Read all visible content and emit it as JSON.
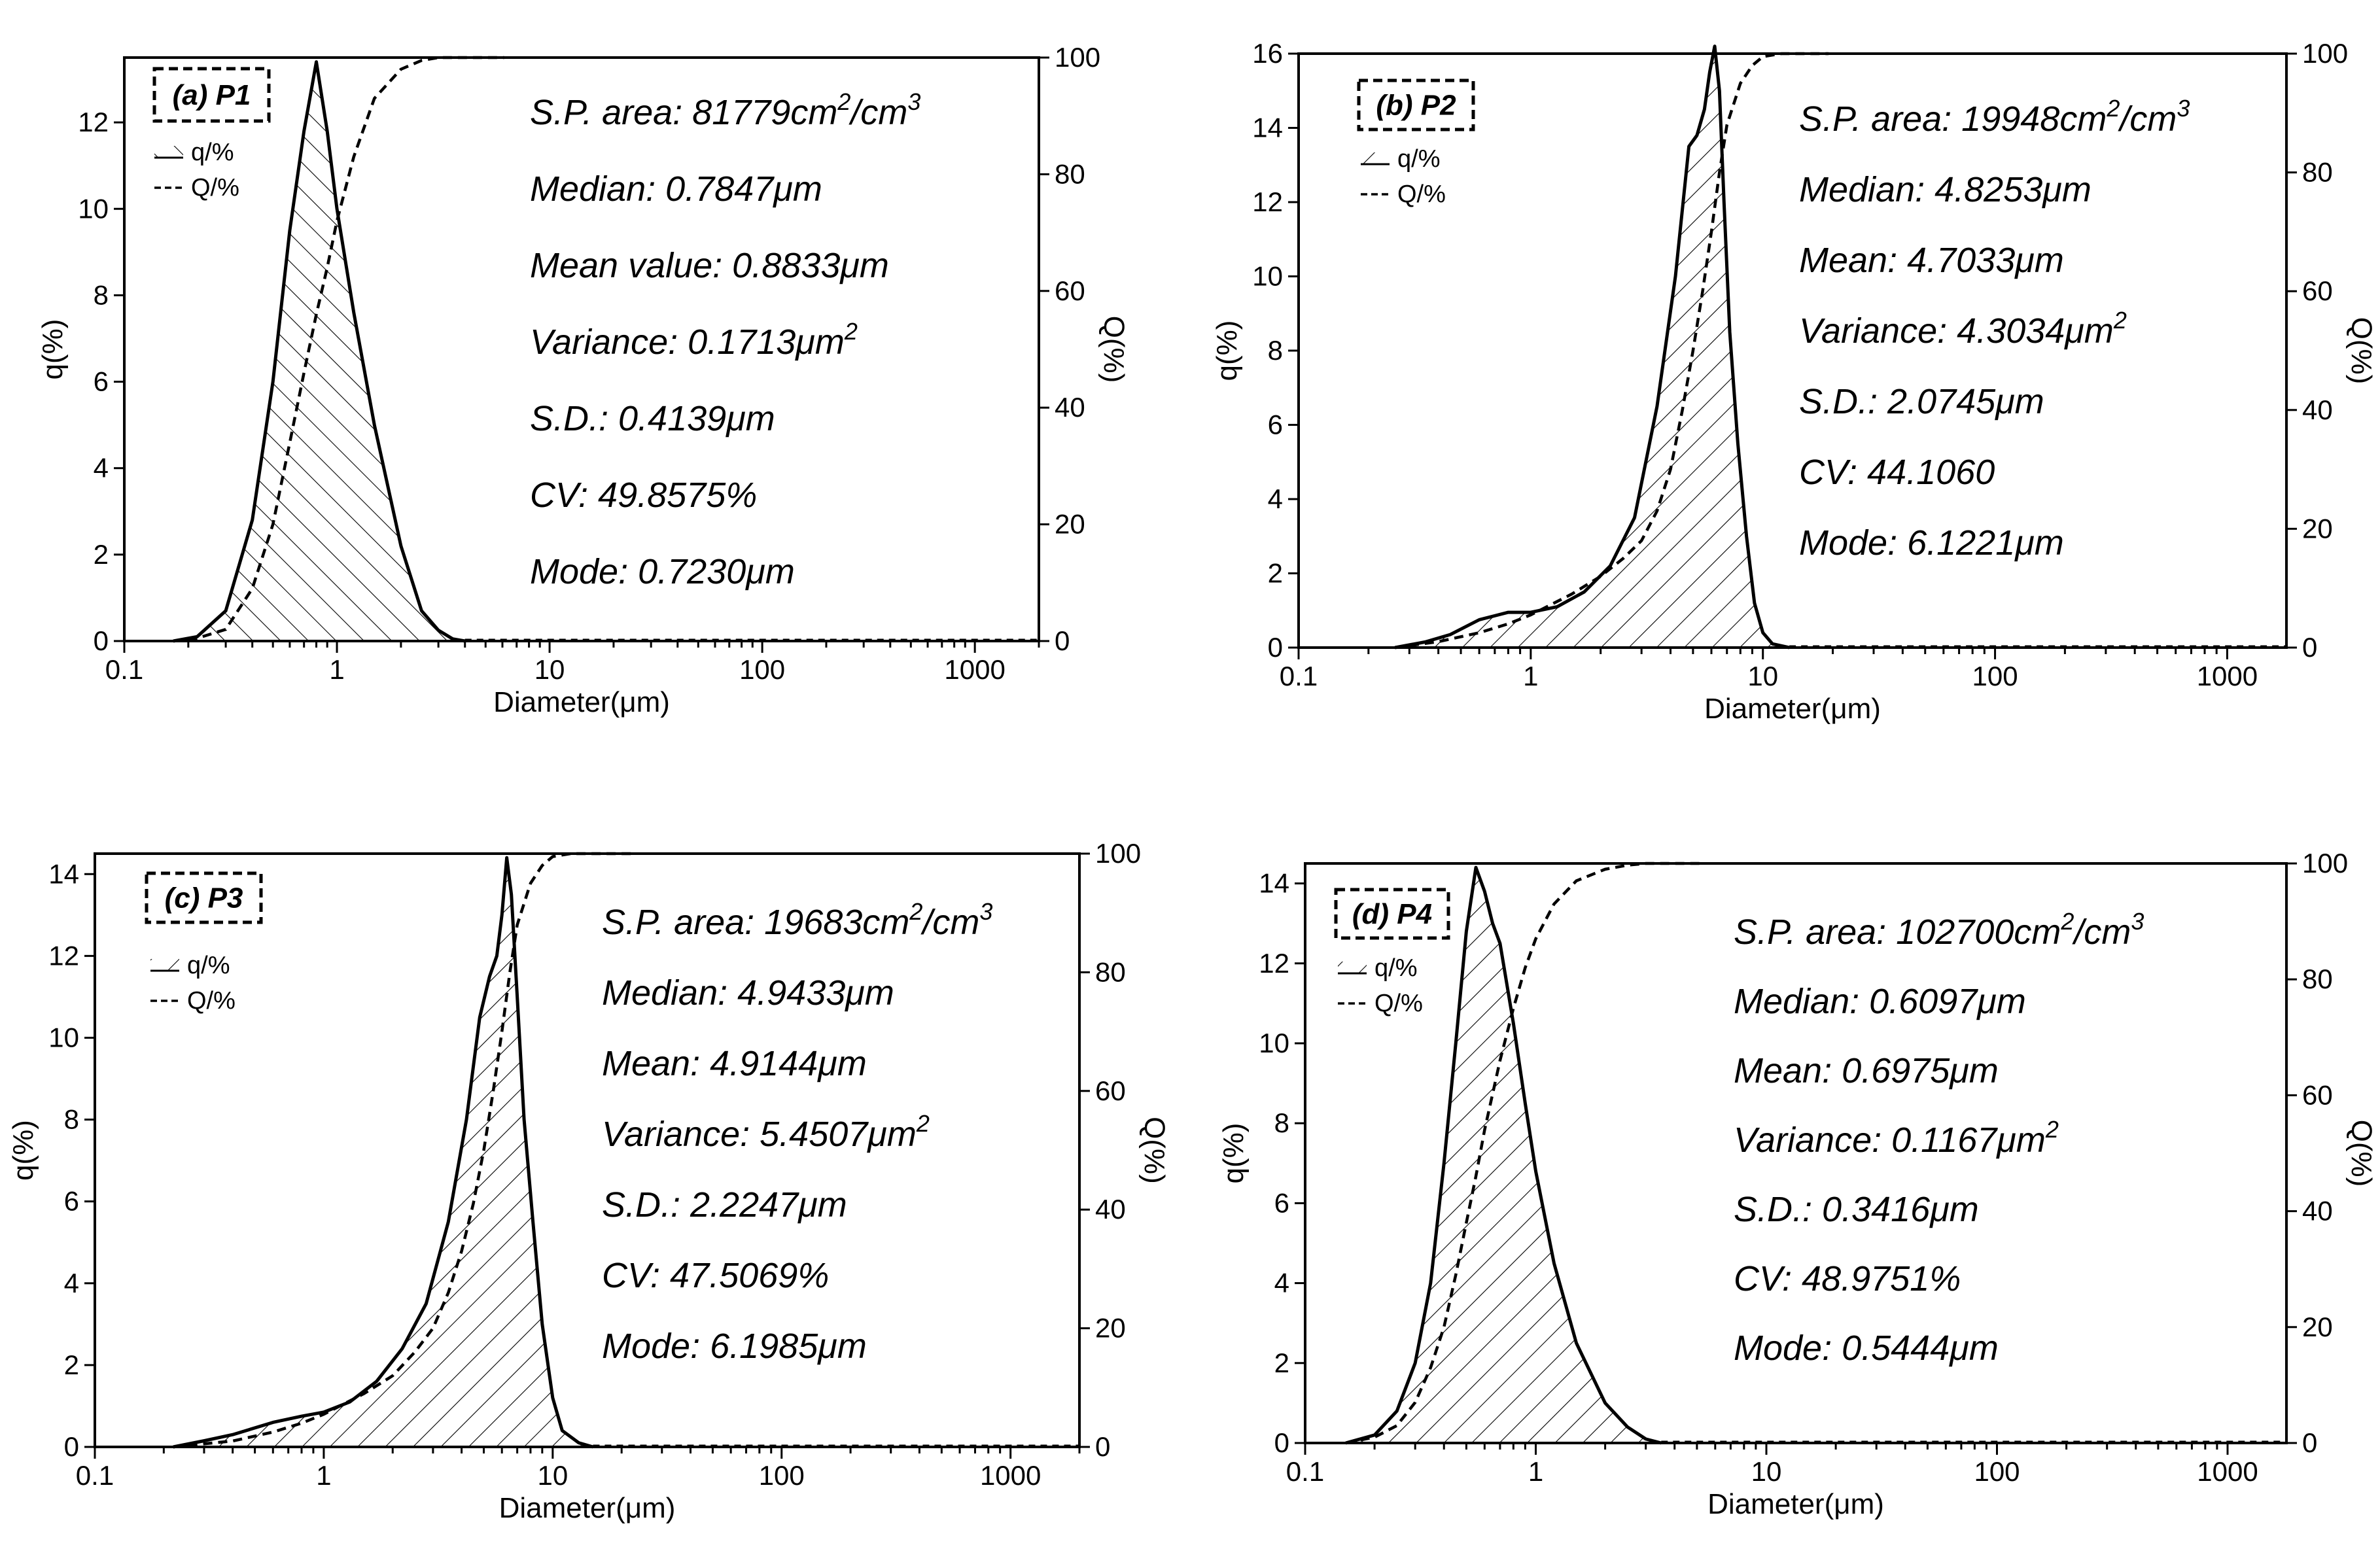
{
  "chart_data": [
    {
      "type": "area",
      "panel": "(a) P1",
      "xlabel": "Diameter(μm)",
      "ylabel": "q(%)",
      "y2label": "Q(%)",
      "xscale": "log",
      "xlim": [
        0.1,
        2000
      ],
      "ylim": [
        0,
        13.5
      ],
      "y2lim": [
        0,
        100
      ],
      "x_ticks": [
        "0.1",
        "1",
        "10",
        "100",
        "1000"
      ],
      "y_ticks": [
        "0",
        "2",
        "4",
        "6",
        "8",
        "10",
        "12"
      ],
      "y2_ticks": [
        "0",
        "20",
        "40",
        "60",
        "80",
        "100"
      ],
      "legend": [
        "q/%",
        "Q/%"
      ],
      "legend_position": "top-left",
      "series": [
        {
          "name": "q/%",
          "style": "solid-hatched",
          "x": [
            0.17,
            0.22,
            0.3,
            0.4,
            0.5,
            0.6,
            0.7,
            0.8,
            0.9,
            1.0,
            1.2,
            1.5,
            2.0,
            2.5,
            3.0,
            3.5,
            4.0
          ],
          "values": [
            0,
            0.1,
            0.7,
            2.8,
            6.0,
            9.5,
            11.8,
            13.4,
            11.8,
            10.0,
            7.6,
            5.0,
            2.2,
            0.7,
            0.25,
            0.05,
            0
          ]
        },
        {
          "name": "Q/%",
          "style": "dashed",
          "x": [
            0.2,
            0.3,
            0.4,
            0.5,
            0.6,
            0.7,
            0.8,
            0.9,
            1.0,
            1.2,
            1.5,
            2.0,
            2.5,
            3.0,
            3.5,
            4.0
          ],
          "values": [
            0,
            2,
            9,
            20,
            34,
            46,
            56,
            64,
            72,
            83,
            93,
            98,
            99.5,
            100,
            100,
            100
          ]
        }
      ],
      "stats": [
        "S.P. area: 81779cm²/cm³",
        "Median: 0.7847μm",
        "Mean value: 0.8833μm",
        "Variance: 0.1713μm²",
        "S.D.: 0.4139μm",
        "CV: 49.8575%",
        "Mode: 0.7230μm"
      ]
    },
    {
      "type": "area",
      "panel": "(b) P2",
      "xlabel": "Diameter(μm)",
      "ylabel": "q(%)",
      "y2label": "Q(%)",
      "xscale": "log",
      "xlim": [
        0.1,
        1800
      ],
      "ylim": [
        0,
        16
      ],
      "y2lim": [
        0,
        100
      ],
      "x_ticks": [
        "0.1",
        "1",
        "10",
        "100",
        "1000"
      ],
      "y_ticks": [
        "0",
        "2",
        "4",
        "6",
        "8",
        "10",
        "12",
        "14",
        "16"
      ],
      "y2_ticks": [
        "0",
        "20",
        "40",
        "60",
        "80",
        "100"
      ],
      "legend": [
        "q/%",
        "Q/%"
      ],
      "legend_position": "top-left",
      "series": [
        {
          "name": "q/%",
          "style": "solid-hatched",
          "x": [
            0.26,
            0.35,
            0.45,
            0.6,
            0.8,
            1.0,
            1.3,
            1.7,
            2.2,
            2.8,
            3.5,
            4.2,
            4.8,
            5.2,
            5.6,
            5.9,
            6.2,
            6.5,
            6.8,
            7.2,
            7.8,
            8.5,
            9.2,
            10,
            11,
            13
          ],
          "values": [
            0,
            0.15,
            0.35,
            0.75,
            0.95,
            0.95,
            1.1,
            1.5,
            2.2,
            3.5,
            6.5,
            10.0,
            13.5,
            13.8,
            14.5,
            15.5,
            16.2,
            15.0,
            12.0,
            8.5,
            5.5,
            3.0,
            1.2,
            0.4,
            0.1,
            0
          ]
        },
        {
          "name": "Q/%",
          "style": "dashed",
          "x": [
            0.26,
            0.4,
            0.6,
            0.8,
            1.0,
            1.5,
            2.0,
            2.5,
            3.0,
            3.5,
            4.0,
            4.5,
            5.0,
            5.5,
            6.0,
            6.5,
            7.0,
            8.0,
            9.0,
            10,
            12,
            13
          ],
          "values": [
            0,
            1,
            2.5,
            4,
            5.5,
            9,
            12,
            15,
            18,
            23,
            30,
            40,
            50,
            60,
            70,
            80,
            88,
            95,
            98,
            99.5,
            100,
            100
          ]
        }
      ],
      "stats": [
        "S.P. area: 19948cm²/cm³",
        "Median: 4.8253μm",
        "Mean: 4.7033μm",
        "Variance: 4.3034μm²",
        "S.D.: 2.0745μm",
        "CV: 44.1060",
        "Mode: 6.1221μm"
      ]
    },
    {
      "type": "area",
      "panel": "(c) P3",
      "xlabel": "Diameter(μm)",
      "ylabel": "q(%)",
      "y2label": "Q(%)",
      "xscale": "log",
      "xlim": [
        0.1,
        2000
      ],
      "ylim": [
        0,
        14.5
      ],
      "y2lim": [
        0,
        100
      ],
      "x_ticks": [
        "0.1",
        "1",
        "10",
        "100",
        "1000"
      ],
      "y_ticks": [
        "0",
        "2",
        "4",
        "6",
        "8",
        "10",
        "12",
        "14"
      ],
      "y2_ticks": [
        "0",
        "20",
        "40",
        "60",
        "80",
        "100"
      ],
      "legend": [
        "q/%",
        "Q/%"
      ],
      "legend_position": "top-left",
      "series": [
        {
          "name": "q/%",
          "style": "solid-hatched",
          "x": [
            0.22,
            0.3,
            0.4,
            0.6,
            0.8,
            1.0,
            1.3,
            1.7,
            2.2,
            2.8,
            3.5,
            4.2,
            4.8,
            5.3,
            5.7,
            6.0,
            6.3,
            6.6,
            7.0,
            7.5,
            8.2,
            9.0,
            10,
            11,
            13,
            15
          ],
          "values": [
            0,
            0.15,
            0.3,
            0.6,
            0.75,
            0.85,
            1.1,
            1.6,
            2.4,
            3.5,
            5.5,
            8.0,
            10.5,
            11.5,
            12.0,
            13.0,
            14.4,
            13.5,
            11.0,
            8.0,
            5.5,
            3.0,
            1.2,
            0.4,
            0.1,
            0
          ]
        },
        {
          "name": "Q/%",
          "style": "dashed",
          "x": [
            0.22,
            0.4,
            0.6,
            0.8,
            1.0,
            1.5,
            2.0,
            2.5,
            3.0,
            3.5,
            4.0,
            4.5,
            5.0,
            5.5,
            6.0,
            6.5,
            7.0,
            8.0,
            9.0,
            10,
            12,
            15
          ],
          "values": [
            0,
            1,
            2.5,
            4,
            5.5,
            9,
            12,
            16,
            20,
            26,
            33,
            41,
            50,
            60,
            70,
            80,
            88,
            95,
            98,
            99.5,
            100,
            100
          ]
        }
      ],
      "stats": [
        "S.P. area: 19683cm²/cm³",
        "Median: 4.9433μm",
        "Mean: 4.9144μm",
        "Variance: 5.4507μm²",
        "S.D.: 2.2247μm",
        "CV: 47.5069%",
        "Mode: 6.1985μm"
      ]
    },
    {
      "type": "area",
      "panel": "(d) P4",
      "xlabel": "Diameter(μm)",
      "ylabel": "q(%)",
      "y2label": "Q(%)",
      "xscale": "log",
      "xlim": [
        0.1,
        1800
      ],
      "ylim": [
        0,
        14.5
      ],
      "y2lim": [
        0,
        100
      ],
      "x_ticks": [
        "0.1",
        "1",
        "10",
        "100",
        "1000"
      ],
      "y_ticks": [
        "0",
        "2",
        "4",
        "6",
        "8",
        "10",
        "12",
        "14"
      ],
      "y2_ticks": [
        "0",
        "20",
        "40",
        "60",
        "80",
        "100"
      ],
      "legend": [
        "q/%",
        "Q/%"
      ],
      "legend_position": "top-left",
      "series": [
        {
          "name": "q/%",
          "style": "solid-hatched",
          "x": [
            0.15,
            0.2,
            0.25,
            0.3,
            0.35,
            0.4,
            0.45,
            0.5,
            0.55,
            0.6,
            0.65,
            0.7,
            0.8,
            0.9,
            1.0,
            1.2,
            1.5,
            2.0,
            2.5,
            3.0,
            3.5
          ],
          "values": [
            0,
            0.2,
            0.8,
            2.0,
            4.0,
            7.0,
            10.0,
            12.8,
            14.4,
            13.8,
            13.0,
            12.5,
            10.5,
            8.5,
            6.8,
            4.5,
            2.5,
            1.0,
            0.4,
            0.1,
            0
          ]
        },
        {
          "name": "Q/%",
          "style": "dashed",
          "x": [
            0.15,
            0.2,
            0.25,
            0.3,
            0.35,
            0.4,
            0.45,
            0.5,
            0.55,
            0.6,
            0.7,
            0.8,
            0.9,
            1.0,
            1.2,
            1.5,
            2.0,
            2.5,
            3.0,
            3.5
          ],
          "values": [
            0,
            1,
            3,
            7,
            13,
            20,
            29,
            38,
            46,
            54,
            66,
            75,
            82,
            87,
            93,
            97,
            99,
            99.7,
            100,
            100
          ]
        }
      ],
      "stats": [
        "S.P. area: 102700cm²/cm³",
        "Median: 0.6097μm",
        "Mean: 0.6975μm",
        "Variance: 0.1167μm²",
        "S.D.: 0.3416μm",
        "CV: 48.9751%",
        "Mode: 0.5444μm"
      ]
    }
  ]
}
